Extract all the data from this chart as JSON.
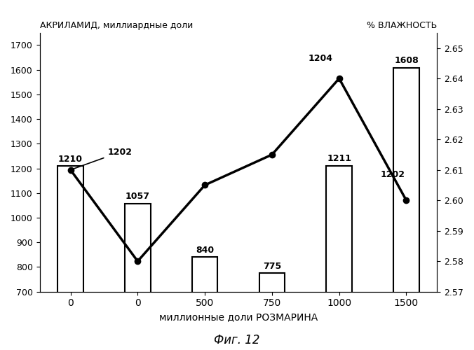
{
  "bar_x_positions": [
    0,
    1,
    2,
    3,
    4,
    5
  ],
  "bar_x_labels": [
    "0",
    "0",
    "500",
    "750",
    "1000",
    "1500"
  ],
  "bar_heights": [
    1210,
    1057,
    840,
    775,
    1211,
    1608
  ],
  "bar_labels": [
    "1210",
    "1057",
    "840",
    "775",
    "1211",
    "1608"
  ],
  "bar_width": 0.38,
  "ylim_left": [
    700,
    1750
  ],
  "yticks_left": [
    700,
    800,
    900,
    1000,
    1100,
    1200,
    1300,
    1400,
    1500,
    1600,
    1700
  ],
  "line_x_positions": [
    0,
    1,
    2,
    3,
    4,
    5
  ],
  "line_y_values_moisture": [
    2.61,
    2.58,
    2.605,
    2.615,
    2.64,
    2.6
  ],
  "ylim_right": [
    2.57,
    2.655
  ],
  "yticks_right": [
    2.57,
    2.58,
    2.59,
    2.6,
    2.61,
    2.62,
    2.63,
    2.64,
    2.65
  ],
  "xlabel": "миллионные доли РОЗМАРИНА",
  "header_left": "АКРИЛАМИД, миллиардные доли",
  "header_right": "% ВЛАЖНОСТЬ",
  "figure_title": "Фиг. 12",
  "background_color": "#ffffff",
  "bar_facecolor": "#ffffff",
  "bar_edgecolor": "#000000",
  "line_color": "#000000"
}
